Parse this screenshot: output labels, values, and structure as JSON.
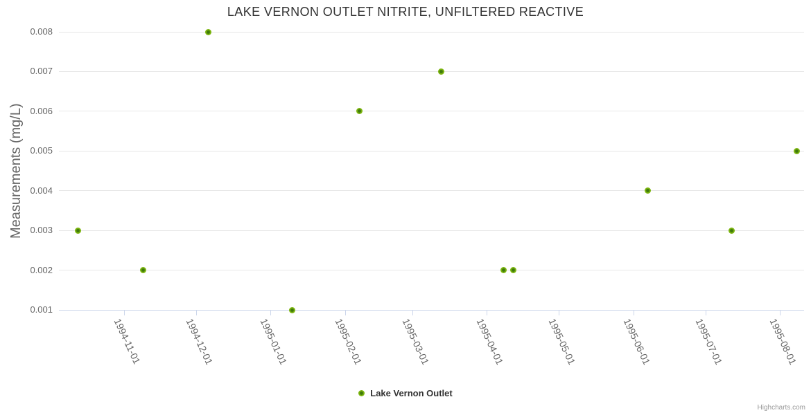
{
  "credits": "Highcharts.com",
  "colors": {
    "background": "#ffffff",
    "title": "#333333",
    "axis_label": "#666666",
    "axis_title": "#666666",
    "gridline": "#e6e6e6",
    "axis_line": "#ccd6eb",
    "credits": "#999999",
    "series_green": "#7cb50f",
    "series_green_dark": "#3f7a0b"
  },
  "chart_data": {
    "type": "scatter",
    "title": "LAKE VERNON OUTLET NITRITE, UNFILTERED REACTIVE",
    "xlabel": "",
    "ylabel": "Measurements (mg/L)",
    "ylim": [
      0.001,
      0.008
    ],
    "y_ticks": [
      0.001,
      0.002,
      0.003,
      0.004,
      0.005,
      0.006,
      0.007,
      0.008
    ],
    "y_tick_decimals": 3,
    "xlim": [
      "1994-10-05",
      "1995-08-11"
    ],
    "x_ticks": [
      "1994-11-01",
      "1994-12-01",
      "1995-01-01",
      "1995-02-01",
      "1995-03-01",
      "1995-04-01",
      "1995-05-01",
      "1995-06-01",
      "1995-07-01",
      "1995-08-01"
    ],
    "grid": true,
    "legend_position": "bottom-center",
    "series": [
      {
        "name": "Lake Vernon Outlet",
        "color": "#7cb50f",
        "marker_center_color": "#3f7a0b",
        "points": [
          {
            "x": "1994-10-13",
            "y": 0.003
          },
          {
            "x": "1994-11-09",
            "y": 0.002
          },
          {
            "x": "1994-12-06",
            "y": 0.008
          },
          {
            "x": "1995-01-10",
            "y": 0.001
          },
          {
            "x": "1995-02-07",
            "y": 0.006
          },
          {
            "x": "1995-03-13",
            "y": 0.007
          },
          {
            "x": "1995-04-08",
            "y": 0.002
          },
          {
            "x": "1995-04-12",
            "y": 0.002
          },
          {
            "x": "1995-06-07",
            "y": 0.004
          },
          {
            "x": "1995-07-12",
            "y": 0.003
          },
          {
            "x": "1995-08-08",
            "y": 0.005
          }
        ]
      }
    ]
  }
}
